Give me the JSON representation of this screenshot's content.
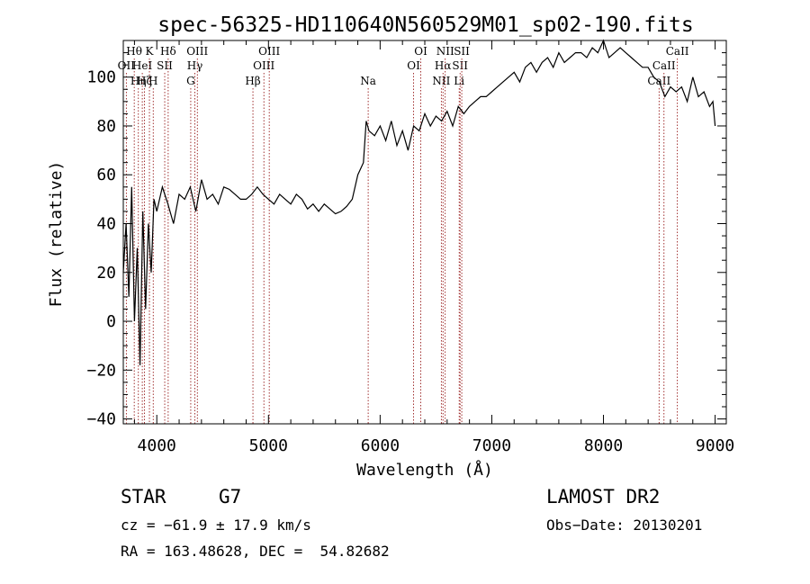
{
  "chart_data": {
    "type": "line",
    "title": "spec-56325-HD110640N560529M01_sp02-190.fits",
    "xlabel": "Wavelength (Å)",
    "ylabel": "Flux (relative)",
    "xlim": [
      3700,
      9100
    ],
    "ylim": [
      -42,
      115
    ],
    "xticks": [
      4000,
      5000,
      6000,
      7000,
      8000,
      9000
    ],
    "yticks": [
      -40,
      -20,
      0,
      20,
      40,
      60,
      80,
      100
    ],
    "grid": false,
    "line_color": "#000000",
    "marker_color": "#8b0000",
    "series": [
      {
        "x": [
          3700,
          3725,
          3750,
          3775,
          3800,
          3825,
          3850,
          3875,
          3900,
          3925,
          3950,
          3975,
          4000,
          4050,
          4100,
          4150,
          4200,
          4250,
          4300,
          4350,
          4400,
          4450,
          4500,
          4550,
          4600,
          4650,
          4700,
          4750,
          4800,
          4850,
          4900,
          4950,
          5000,
          5050,
          5100,
          5150,
          5200,
          5250,
          5300,
          5350,
          5400,
          5450,
          5500,
          5550,
          5600,
          5650,
          5700,
          5750,
          5800,
          5850,
          5875,
          5900,
          5950,
          6000,
          6050,
          6100,
          6150,
          6200,
          6250,
          6300,
          6350,
          6400,
          6450,
          6500,
          6550,
          6600,
          6650,
          6700,
          6750,
          6800,
          6850,
          6900,
          6950,
          7000,
          7050,
          7100,
          7150,
          7200,
          7250,
          7300,
          7350,
          7400,
          7450,
          7500,
          7550,
          7600,
          7650,
          7700,
          7750,
          7800,
          7850,
          7900,
          7950,
          8000,
          8050,
          8100,
          8150,
          8200,
          8250,
          8300,
          8350,
          8400,
          8450,
          8500,
          8550,
          8600,
          8650,
          8700,
          8750,
          8800,
          8850,
          8900,
          8950,
          8980,
          9000
        ],
        "y": [
          20,
          40,
          10,
          55,
          0,
          30,
          -18,
          45,
          5,
          40,
          20,
          50,
          45,
          55,
          48,
          40,
          52,
          50,
          55,
          45,
          58,
          50,
          52,
          48,
          55,
          54,
          52,
          50,
          50,
          52,
          55,
          52,
          50,
          48,
          52,
          50,
          48,
          52,
          50,
          46,
          48,
          45,
          48,
          46,
          44,
          45,
          47,
          50,
          60,
          65,
          82,
          78,
          76,
          80,
          74,
          82,
          72,
          78,
          70,
          80,
          78,
          85,
          80,
          84,
          82,
          86,
          80,
          88,
          85,
          88,
          90,
          92,
          92,
          94,
          96,
          98,
          100,
          102,
          98,
          104,
          106,
          102,
          106,
          108,
          104,
          110,
          106,
          108,
          110,
          110,
          108,
          112,
          110,
          115,
          108,
          110,
          112,
          110,
          108,
          106,
          104,
          104,
          100,
          98,
          92,
          96,
          94,
          96,
          90,
          100,
          92,
          94,
          88,
          90,
          80
        ]
      }
    ],
    "line_markers": [
      {
        "wavelength": 3727,
        "labels": [
          "OII"
        ],
        "row": 2
      },
      {
        "wavelength": 3798,
        "labels": [
          "Hθ"
        ],
        "row": 1
      },
      {
        "wavelength": 3835,
        "labels": [
          "Hη"
        ],
        "row": 3
      },
      {
        "wavelength": 3870,
        "labels": [
          "HeI"
        ],
        "row": 2
      },
      {
        "wavelength": 3889,
        "labels": [
          "Hζ"
        ],
        "row": 3
      },
      {
        "wavelength": 3934,
        "labels": [
          "K"
        ],
        "row": 1
      },
      {
        "wavelength": 3968,
        "labels": [
          "H"
        ],
        "row": 3
      },
      {
        "wavelength": 4071,
        "labels": [
          "SII"
        ],
        "row": 2
      },
      {
        "wavelength": 4102,
        "labels": [
          "Hδ"
        ],
        "row": 1
      },
      {
        "wavelength": 4304,
        "labels": [
          "G"
        ],
        "row": 3
      },
      {
        "wavelength": 4341,
        "labels": [
          "Hγ"
        ],
        "row": 2
      },
      {
        "wavelength": 4363,
        "labels": [
          "OIII"
        ],
        "row": 1
      },
      {
        "wavelength": 4861,
        "labels": [
          "Hβ"
        ],
        "row": 3
      },
      {
        "wavelength": 4959,
        "labels": [
          "OIII"
        ],
        "row": 2
      },
      {
        "wavelength": 5007,
        "labels": [
          "OIII"
        ],
        "row": 1
      },
      {
        "wavelength": 5893,
        "labels": [
          "Na"
        ],
        "row": 3
      },
      {
        "wavelength": 6300,
        "labels": [
          "OI"
        ],
        "row": 2
      },
      {
        "wavelength": 6364,
        "labels": [
          "OI"
        ],
        "row": 1
      },
      {
        "wavelength": 6548,
        "labels": [
          "NII"
        ],
        "row": 3
      },
      {
        "wavelength": 6563,
        "labels": [
          "Hα"
        ],
        "row": 2
      },
      {
        "wavelength": 6583,
        "labels": [
          "NII"
        ],
        "row": 1
      },
      {
        "wavelength": 6708,
        "labels": [
          "Li"
        ],
        "row": 3
      },
      {
        "wavelength": 6716,
        "labels": [
          "SII"
        ],
        "row": 2
      },
      {
        "wavelength": 6731,
        "labels": [
          "SII"
        ],
        "row": 1
      },
      {
        "wavelength": 8498,
        "labels": [
          "CaII"
        ],
        "row": 3
      },
      {
        "wavelength": 8542,
        "labels": [
          "CaII"
        ],
        "row": 2
      },
      {
        "wavelength": 8662,
        "labels": [
          "CaII"
        ],
        "row": 1
      }
    ]
  },
  "footer": {
    "object_type": "STAR",
    "subclass": "G7",
    "survey": "LAMOST DR2",
    "cz": "cz = −61.9 ± 17.9 km/s",
    "obs_date": "Obs−Date: 20130201",
    "coords": "RA = 163.48628, DEC =  54.82682"
  }
}
